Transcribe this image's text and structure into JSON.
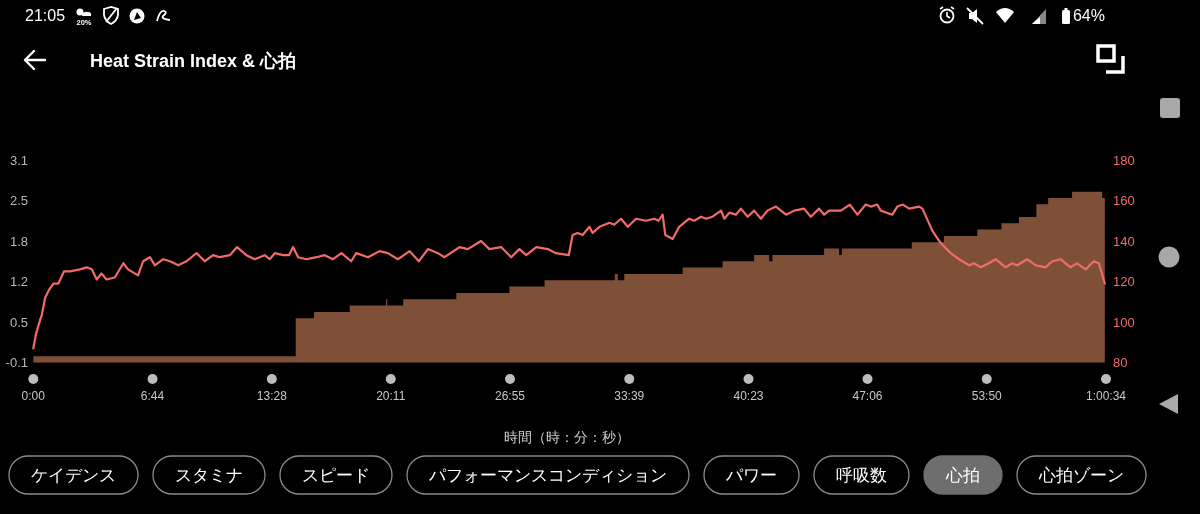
{
  "chart_data": {
    "type": "area",
    "title": "Heat Strain Index & 心拍",
    "xlabel": "時間（時：分：秒）",
    "xlim": [
      0,
      3634
    ],
    "xticks": [
      {
        "value": 0,
        "label": "0:00"
      },
      {
        "value": 404,
        "label": "6:44"
      },
      {
        "value": 808,
        "label": "13:28"
      },
      {
        "value": 1211,
        "label": "20:11"
      },
      {
        "value": 1615,
        "label": "26:55"
      },
      {
        "value": 2019,
        "label": "33:39"
      },
      {
        "value": 2423,
        "label": "40:23"
      },
      {
        "value": 2826,
        "label": "47:06"
      },
      {
        "value": 3230,
        "label": "53:50"
      },
      {
        "value": 3634,
        "label": "1:00:34"
      }
    ],
    "ylim": [
      -0.1,
      3.1
    ],
    "yticks": [
      -0.1,
      {
        "value": 0.54,
        "label": "0.5"
      },
      {
        "value": 1.18,
        "label": "1.2"
      },
      {
        "value": 1.82,
        "label": "1.8"
      },
      {
        "value": 2.46,
        "label": "2.5"
      },
      3.1
    ],
    "y2lim": [
      80,
      180
    ],
    "y2ticks": [
      80,
      100,
      120,
      140,
      160,
      180
    ],
    "series": [
      {
        "color": "#7e5037",
        "x": [
          0,
          889,
          889,
          951,
          951,
          1072,
          1072,
          1195,
          1195,
          1199,
          1199,
          1253,
          1253,
          1433,
          1433,
          1613,
          1613,
          1732,
          1732,
          1970,
          1970,
          1980,
          1980,
          2002,
          2002,
          2200,
          2200,
          2335,
          2335,
          2442,
          2442,
          2493,
          2493,
          2504,
          2504,
          2679,
          2679,
          2730,
          2730,
          2739,
          2739,
          2976,
          2976,
          3085,
          3085,
          3198,
          3198,
          3280,
          3280,
          3339,
          3339,
          3398,
          3398,
          3438,
          3438,
          3519,
          3519,
          3621,
          3621,
          3630
        ],
        "values": [
          0,
          0,
          0.6,
          0.6,
          0.7,
          0.7,
          0.8,
          0.8,
          0.9,
          0.9,
          0.8,
          0.8,
          0.9,
          0.9,
          1.0,
          1.0,
          1.1,
          1.1,
          1.2,
          1.2,
          1.3,
          1.3,
          1.2,
          1.2,
          1.3,
          1.3,
          1.4,
          1.4,
          1.5,
          1.5,
          1.6,
          1.6,
          1.5,
          1.5,
          1.6,
          1.6,
          1.7,
          1.7,
          1.6,
          1.6,
          1.7,
          1.7,
          1.8,
          1.8,
          1.9,
          1.9,
          2.0,
          2.0,
          2.1,
          2.1,
          2.2,
          2.2,
          2.4,
          2.4,
          2.5,
          2.5,
          2.6,
          2.6,
          2.5,
          2.5
        ]
      },
      {
        "type": "line",
        "axis": "y2",
        "color": "#f26a6a",
        "x": [
          0,
          9,
          23,
          28,
          40,
          54,
          68,
          85,
          104,
          124,
          158,
          181,
          198,
          215,
          231,
          248,
          276,
          305,
          321,
          355,
          372,
          395,
          412,
          440,
          463,
          491,
          519,
          553,
          581,
          609,
          632,
          666,
          690,
          722,
          750,
          784,
          801,
          818,
          846,
          866,
          880,
          897,
          925,
          959,
          987,
          1015,
          1044,
          1077,
          1094,
          1134,
          1173,
          1201,
          1235,
          1275,
          1306,
          1337,
          1371,
          1393,
          1444,
          1472,
          1517,
          1545,
          1585,
          1619,
          1647,
          1670,
          1704,
          1743,
          1771,
          1814,
          1827,
          1844,
          1861,
          1884,
          1895,
          1918,
          1952,
          1968,
          1991,
          2014,
          2042,
          2076,
          2104,
          2118,
          2132,
          2141,
          2166,
          2188,
          2222,
          2239,
          2262,
          2279,
          2301,
          2330,
          2341,
          2358,
          2380,
          2397,
          2420,
          2442,
          2465,
          2487,
          2516,
          2550,
          2578,
          2611,
          2634,
          2662,
          2679,
          2696,
          2736,
          2766,
          2792,
          2820,
          2837,
          2859,
          2871,
          2910,
          2927,
          2946,
          2967,
          3001,
          3012,
          3046,
          3074,
          3108,
          3136,
          3170,
          3187,
          3209,
          3237,
          3260,
          3294,
          3316,
          3333,
          3367,
          3396,
          3429,
          3452,
          3480,
          3497,
          3514,
          3536,
          3565,
          3593,
          3610,
          3630
        ],
        "values": [
          87,
          94,
          101,
          103,
          112,
          116,
          119,
          119,
          125,
          125,
          126,
          127,
          126,
          121,
          124,
          121,
          122,
          129,
          126,
          123,
          130,
          132,
          128,
          131,
          130,
          128,
          130,
          134,
          130,
          133,
          132,
          133,
          137,
          133,
          131,
          133,
          131,
          134,
          133,
          133,
          137,
          132,
          131,
          132,
          133,
          131,
          134,
          130,
          134,
          132,
          135,
          134,
          131,
          135,
          130,
          136,
          134,
          132,
          137,
          136,
          140,
          136,
          137,
          132,
          136,
          133,
          137,
          136,
          134,
          133,
          143,
          144,
          143,
          147,
          144,
          147,
          149,
          148,
          151,
          147,
          151,
          150,
          151,
          150,
          153,
          143,
          141,
          147,
          151,
          150,
          152,
          151,
          152,
          155,
          151,
          154,
          153,
          156,
          152,
          155,
          151,
          155,
          157,
          153,
          155,
          156,
          152,
          156,
          153,
          155,
          155,
          158,
          153,
          158,
          157,
          158,
          155,
          153,
          157,
          158,
          156,
          157,
          156,
          145,
          139,
          134,
          131,
          128,
          129,
          127,
          129,
          131,
          127,
          129,
          128,
          131,
          128,
          127,
          130,
          131,
          129,
          127,
          129,
          126,
          130,
          129,
          119
        ]
      }
    ],
    "annotations": [
      "21:05",
      "20%",
      "64%",
      "ケイデンス",
      "スタミナ",
      "スピード",
      "パフォーマンスコンディション",
      "パワー",
      "呼吸数",
      "心拍",
      "心拍ゾーン"
    ]
  }
}
